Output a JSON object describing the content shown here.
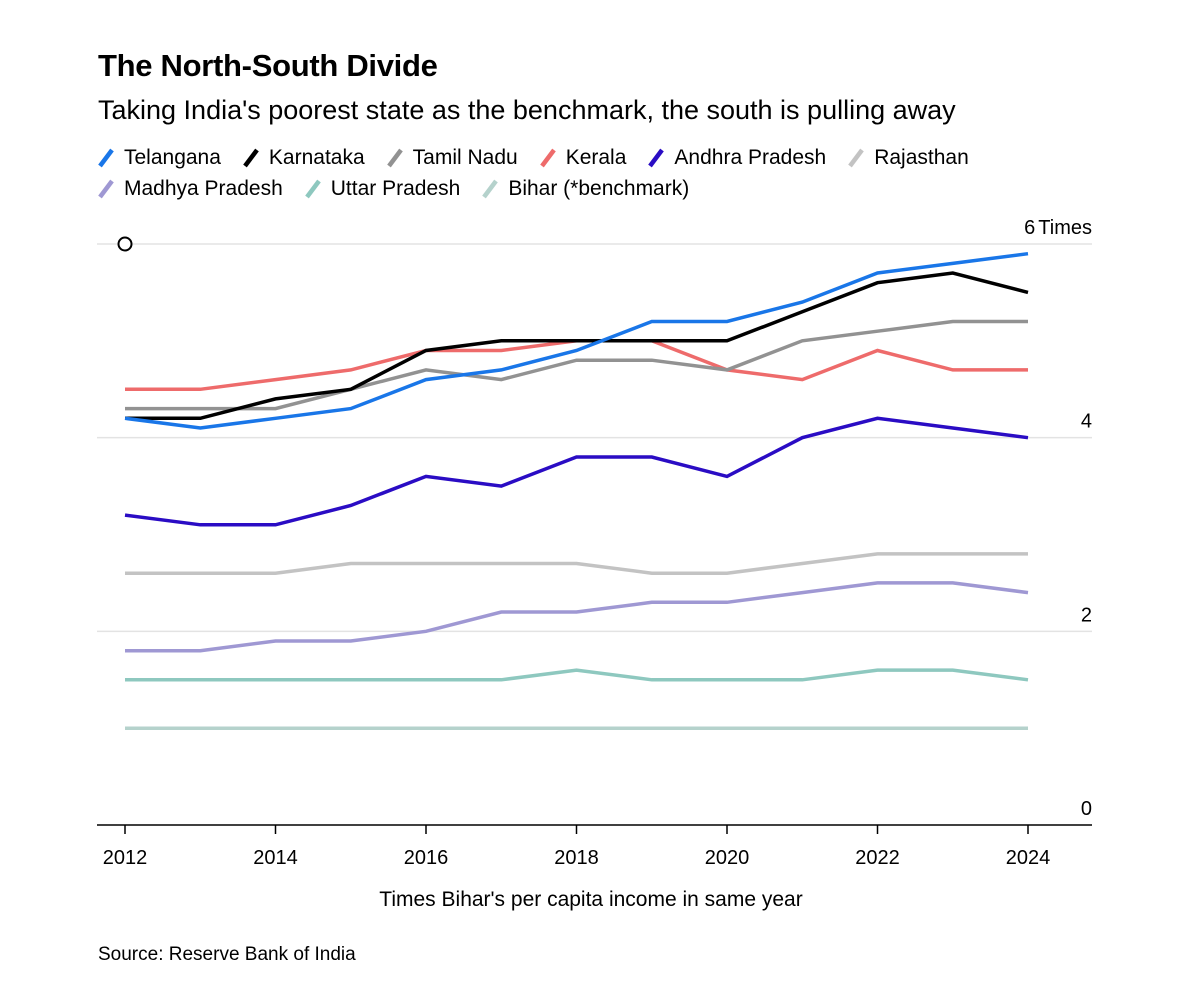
{
  "title": "The North-South Divide",
  "subtitle": "Taking India's poorest state as the benchmark, the south is pulling away",
  "source": "Source: Reserve Bank of India",
  "colors": {
    "Telangana": "#1976e8",
    "Karnataka": "#000000",
    "Tamil Nadu": "#929292",
    "Kerala": "#ee6b6b",
    "Andhra Pradesh": "#2a0cc4",
    "Rajasthan": "#c3c3c3",
    "Madhya Pradesh": "#9f98d3",
    "Uttar Pradesh": "#8ec8bf",
    "Bihar (*benchmark)": "#b5d2cc"
  },
  "chart_data": {
    "type": "line",
    "title": "The North-South Divide",
    "subtitle": "Taking India's poorest state as the benchmark, the south is pulling away",
    "xlabel": "Times Bihar's per capita income in same year",
    "ylabel": "",
    "y_unit_label": "Times",
    "xlim": [
      2012,
      2025
    ],
    "ylim": [
      0,
      6
    ],
    "xticks": [
      2012,
      2014,
      2016,
      2018,
      2020,
      2022,
      2024
    ],
    "yticks": [
      0,
      2,
      4,
      6
    ],
    "grid": true,
    "legend": "top",
    "x": [
      2012,
      2013,
      2014,
      2015,
      2016,
      2017,
      2018,
      2019,
      2020,
      2021,
      2022,
      2023,
      2024
    ],
    "series": [
      {
        "name": "Telangana",
        "values": [
          4.2,
          4.1,
          4.2,
          4.3,
          4.6,
          4.7,
          4.9,
          5.2,
          5.2,
          5.4,
          5.7,
          5.8,
          5.9
        ]
      },
      {
        "name": "Karnataka",
        "values": [
          4.2,
          4.2,
          4.4,
          4.5,
          4.9,
          5.0,
          5.0,
          5.0,
          5.0,
          5.3,
          5.6,
          5.7,
          5.5
        ]
      },
      {
        "name": "Tamil Nadu",
        "values": [
          4.3,
          4.3,
          4.3,
          4.5,
          4.7,
          4.6,
          4.8,
          4.8,
          4.7,
          5.0,
          5.1,
          5.2,
          5.2
        ]
      },
      {
        "name": "Kerala",
        "values": [
          4.5,
          4.5,
          4.6,
          4.7,
          4.9,
          4.9,
          5.0,
          5.0,
          4.7,
          4.6,
          4.9,
          4.7,
          4.7
        ]
      },
      {
        "name": "Andhra Pradesh",
        "values": [
          3.2,
          3.1,
          3.1,
          3.3,
          3.6,
          3.5,
          3.8,
          3.8,
          3.6,
          4.0,
          4.2,
          4.1,
          4.0
        ]
      },
      {
        "name": "Rajasthan",
        "values": [
          2.6,
          2.6,
          2.6,
          2.7,
          2.7,
          2.7,
          2.7,
          2.6,
          2.6,
          2.7,
          2.8,
          2.8,
          2.8
        ]
      },
      {
        "name": "Madhya Pradesh",
        "values": [
          1.8,
          1.8,
          1.9,
          1.9,
          2.0,
          2.2,
          2.2,
          2.3,
          2.3,
          2.4,
          2.5,
          2.5,
          2.4
        ]
      },
      {
        "name": "Uttar Pradesh",
        "values": [
          1.5,
          1.5,
          1.5,
          1.5,
          1.5,
          1.5,
          1.6,
          1.5,
          1.5,
          1.5,
          1.6,
          1.6,
          1.5
        ]
      },
      {
        "name": "Bihar (*benchmark)",
        "values": [
          1.0,
          1.0,
          1.0,
          1.0,
          1.0,
          1.0,
          1.0,
          1.0,
          1.0,
          1.0,
          1.0,
          1.0,
          1.0
        ]
      }
    ]
  }
}
